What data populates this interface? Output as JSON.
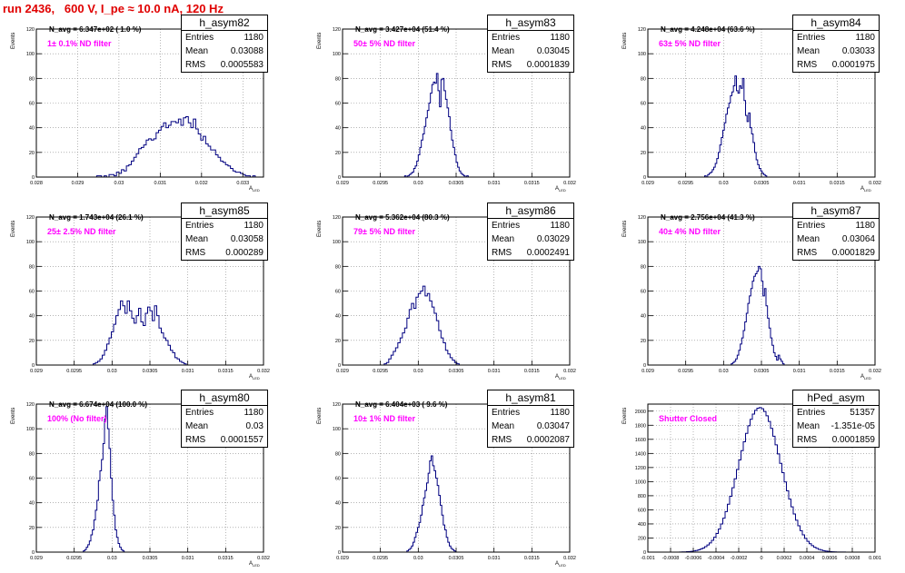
{
  "title": "run 2436,   600 V, I_pe ≈ 10.0 nA, 120 Hz",
  "chart_data": [
    {
      "type": "bar",
      "hist_name": "h_asym82",
      "navg_text": "N_avg = 6.347e+02 ( 1.0 %)",
      "filter_text": "1± 0.1% ND filter",
      "stats": {
        "entries": "1180",
        "mean": "0.03088",
        "rms": "0.0005583"
      },
      "xlabel": "A",
      "xlabel_sub": "LED",
      "ylabel": "Events",
      "xlim": [
        0.028,
        0.0335
      ],
      "ylim": [
        0,
        120
      ],
      "xticks": [
        "0.028",
        "0.029",
        "0.03",
        "0.031",
        "0.032",
        "0.033"
      ],
      "xtick_values": [
        0.028,
        0.029,
        0.03,
        0.031,
        0.032,
        0.033
      ],
      "yticks": [
        0,
        20,
        40,
        60,
        80,
        100,
        120
      ],
      "bins": {
        "x0": 0.0294,
        "width": 6e-05,
        "values": [
          0,
          1,
          1,
          0,
          1,
          0,
          2,
          2,
          1,
          4,
          3,
          6,
          5,
          9,
          10,
          13,
          16,
          19,
          23,
          24,
          26,
          30,
          31,
          30,
          31,
          36,
          38,
          41,
          44,
          40,
          42,
          45,
          45,
          44,
          47,
          42,
          48,
          49,
          44,
          40,
          47,
          39,
          35,
          30,
          33,
          27,
          25,
          22,
          22,
          18,
          16,
          13,
          12,
          10,
          9,
          7,
          5,
          4,
          4,
          3,
          2,
          1,
          1,
          0,
          1
        ]
      }
    },
    {
      "type": "bar",
      "hist_name": "h_asym83",
      "navg_text": "N_avg = 3.427e+04 (51.4 %)",
      "filter_text": "50± 5% ND filter",
      "stats": {
        "entries": "1180",
        "mean": "0.03045",
        "rms": "0.0001839"
      },
      "xlabel": "A",
      "xlabel_sub": "LED",
      "ylabel": "Events",
      "xlim": [
        0.029,
        0.032
      ],
      "ylim": [
        0,
        120
      ],
      "xticks": [
        "0.029",
        "0.0295",
        "0.03",
        "0.0305",
        "0.031",
        "0.0315",
        "0.032"
      ],
      "xtick_values": [
        0.029,
        0.0295,
        0.03,
        0.0305,
        0.031,
        0.0315,
        0.032
      ],
      "yticks": [
        0,
        20,
        40,
        60,
        80,
        100,
        120
      ],
      "bins": {
        "x0": 0.0298,
        "width": 2e-05,
        "values": [
          0,
          1,
          0,
          1,
          2,
          3,
          4,
          7,
          9,
          13,
          18,
          24,
          30,
          35,
          41,
          48,
          54,
          60,
          68,
          75,
          77,
          76,
          84,
          70,
          57,
          79,
          80,
          70,
          63,
          56,
          49,
          38,
          30,
          24,
          18,
          12,
          8,
          5,
          3,
          2,
          1,
          0,
          1
        ]
      }
    },
    {
      "type": "bar",
      "hist_name": "h_asym84",
      "navg_text": "N_avg = 4.248e+04 (63.6 %)",
      "filter_text": "63± 5% ND filter",
      "stats": {
        "entries": "1180",
        "mean": "0.03033",
        "rms": "0.0001975"
      },
      "xlabel": "A",
      "xlabel_sub": "LED",
      "ylabel": "Events",
      "xlim": [
        0.029,
        0.032
      ],
      "ylim": [
        0,
        120
      ],
      "xticks": [
        "0.029",
        "0.0295",
        "0.03",
        "0.0305",
        "0.031",
        "0.0315",
        "0.032"
      ],
      "xtick_values": [
        0.029,
        0.0295,
        0.03,
        0.0305,
        0.031,
        0.0315,
        0.032
      ],
      "yticks": [
        0,
        20,
        40,
        60,
        80,
        100,
        120
      ],
      "bins": {
        "x0": 0.02975,
        "width": 2e-05,
        "values": [
          1,
          0,
          2,
          3,
          4,
          6,
          8,
          11,
          15,
          20,
          26,
          32,
          38,
          44,
          51,
          56,
          60,
          66,
          69,
          74,
          82,
          70,
          68,
          74,
          72,
          80,
          62,
          50,
          45,
          52,
          40,
          35,
          28,
          20,
          14,
          10,
          7,
          5,
          3,
          2,
          1
        ]
      }
    },
    {
      "type": "bar",
      "hist_name": "h_asym85",
      "navg_text": "N_avg = 1.743e+04 (26.1 %)",
      "filter_text": "25± 2.5% ND filter",
      "stats": {
        "entries": "1180",
        "mean": "0.03058",
        "rms": "0.000289"
      },
      "xlabel": "A",
      "xlabel_sub": "LED",
      "ylabel": "Events",
      "xlim": [
        0.029,
        0.032
      ],
      "ylim": [
        0,
        120
      ],
      "xticks": [
        "0.029",
        "0.0295",
        "0.03",
        "0.0305",
        "0.031",
        "0.0315",
        "0.032"
      ],
      "xtick_values": [
        0.029,
        0.0295,
        0.03,
        0.0305,
        0.031,
        0.0315,
        0.032
      ],
      "yticks": [
        0,
        20,
        40,
        60,
        80,
        100,
        120
      ],
      "bins": {
        "x0": 0.02975,
        "width": 3e-05,
        "values": [
          1,
          2,
          3,
          5,
          8,
          12,
          17,
          22,
          27,
          33,
          40,
          45,
          52,
          48,
          42,
          52,
          44,
          38,
          34,
          40,
          46,
          35,
          32,
          42,
          47,
          44,
          36,
          48,
          40,
          30,
          26,
          22,
          20,
          16,
          12,
          10,
          6,
          5,
          3,
          2,
          1
        ]
      }
    },
    {
      "type": "bar",
      "hist_name": "h_asym86",
      "navg_text": "N_avg = 5.362e+04 (80.3 %)",
      "filter_text": "79± 5% ND filter",
      "stats": {
        "entries": "1180",
        "mean": "0.03029",
        "rms": "0.0002491"
      },
      "xlabel": "A",
      "xlabel_sub": "LED",
      "ylabel": "Events",
      "xlim": [
        0.029,
        0.032
      ],
      "ylim": [
        0,
        120
      ],
      "xticks": [
        "0.029",
        "0.0295",
        "0.03",
        "0.0305",
        "0.031",
        "0.0315",
        "0.032"
      ],
      "xtick_values": [
        0.029,
        0.0295,
        0.03,
        0.0305,
        0.031,
        0.0315,
        0.032
      ],
      "yticks": [
        0,
        20,
        40,
        60,
        80,
        100,
        120
      ],
      "bins": {
        "x0": 0.02955,
        "width": 3e-05,
        "values": [
          1,
          2,
          5,
          8,
          11,
          14,
          18,
          22,
          26,
          30,
          38,
          45,
          50,
          46,
          55,
          58,
          60,
          64,
          56,
          58,
          52,
          47,
          42,
          36,
          28,
          22,
          18,
          12,
          9,
          6,
          4,
          2,
          1
        ]
      }
    },
    {
      "type": "bar",
      "hist_name": "h_asym87",
      "navg_text": "N_avg = 2.756e+04 (41.3 %)",
      "filter_text": "40± 4% ND filter",
      "stats": {
        "entries": "1180",
        "mean": "0.03064",
        "rms": "0.0001829"
      },
      "xlabel": "A",
      "xlabel_sub": "LED",
      "ylabel": "Events",
      "xlim": [
        0.029,
        0.032
      ],
      "ylim": [
        0,
        120
      ],
      "xticks": [
        "0.029",
        "0.0295",
        "0.03",
        "0.0305",
        "0.031",
        "0.0315",
        "0.032"
      ],
      "xtick_values": [
        0.029,
        0.0295,
        0.03,
        0.0305,
        0.031,
        0.0315,
        0.032
      ],
      "yticks": [
        0,
        20,
        40,
        60,
        80,
        100,
        120
      ],
      "bins": {
        "x0": 0.0301,
        "width": 2e-05,
        "values": [
          1,
          2,
          3,
          5,
          8,
          12,
          17,
          22,
          28,
          35,
          42,
          50,
          56,
          62,
          68,
          72,
          74,
          76,
          80,
          78,
          68,
          56,
          62,
          48,
          38,
          30,
          22,
          16,
          10,
          7,
          4,
          8,
          5,
          3,
          1
        ]
      }
    },
    {
      "type": "bar",
      "hist_name": "h_asym80",
      "navg_text": "N_avg = 6.674e+04 (100.0 %)",
      "filter_text": "100% (No filter)",
      "stats": {
        "entries": "1180",
        "mean": "0.03",
        "rms": "0.0001557"
      },
      "xlabel": "A",
      "xlabel_sub": "LED",
      "ylabel": "Events",
      "xlim": [
        0.029,
        0.032
      ],
      "ylim": [
        0,
        120
      ],
      "xticks": [
        "0.029",
        "0.0295",
        "0.03",
        "0.0305",
        "0.031",
        "0.0315",
        "0.032"
      ],
      "xtick_values": [
        0.029,
        0.0295,
        0.03,
        0.0305,
        0.031,
        0.0315,
        0.032
      ],
      "yticks": [
        0,
        20,
        40,
        60,
        80,
        100,
        120
      ],
      "bins": {
        "x0": 0.02962,
        "width": 2e-05,
        "values": [
          1,
          2,
          4,
          6,
          9,
          14,
          18,
          26,
          34,
          42,
          58,
          66,
          75,
          88,
          108,
          118,
          100,
          84,
          60,
          42,
          30,
          18,
          12,
          7,
          4,
          2,
          1
        ]
      }
    },
    {
      "type": "bar",
      "hist_name": "h_asym81",
      "navg_text": "N_avg = 6.404e+03 ( 9.6 %)",
      "filter_text": "10± 1% ND filter",
      "stats": {
        "entries": "1180",
        "mean": "0.03047",
        "rms": "0.0002087"
      },
      "xlabel": "A",
      "xlabel_sub": "LED",
      "ylabel": "Events",
      "xlim": [
        0.029,
        0.032
      ],
      "ylim": [
        0,
        120
      ],
      "xticks": [
        "0.029",
        "0.0295",
        "0.03",
        "0.0305",
        "0.031",
        "0.0315",
        "0.032"
      ],
      "xtick_values": [
        0.029,
        0.0295,
        0.03,
        0.0305,
        0.031,
        0.0315,
        0.032
      ],
      "yticks": [
        0,
        20,
        40,
        60,
        80,
        100,
        120
      ],
      "bins": {
        "x0": 0.02985,
        "width": 2e-05,
        "values": [
          1,
          2,
          3,
          5,
          8,
          12,
          16,
          20,
          24,
          30,
          38,
          44,
          50,
          56,
          64,
          74,
          78,
          70,
          66,
          60,
          54,
          46,
          38,
          30,
          22,
          18,
          12,
          8,
          5,
          3,
          2,
          1
        ]
      }
    },
    {
      "type": "bar",
      "hist_name": "hPed_asym",
      "navg_text": "",
      "filter_text": "Shutter Closed",
      "stats": {
        "entries": "51357",
        "mean": "-1.351e-05",
        "rms": "0.0001859"
      },
      "xlabel": "",
      "xlabel_sub": "",
      "ylabel": "Events",
      "xlim": [
        -0.001,
        0.001
      ],
      "ylim": [
        0,
        2100
      ],
      "xticks": [
        "-0.001",
        "-0.0008",
        "-0.0006",
        "-0.0004",
        "-0.0002",
        "0",
        "0.0002",
        "0.0004",
        "0.0006",
        "0.0008",
        "0.001"
      ],
      "xtick_values": [
        -0.001,
        -0.0008,
        -0.0006,
        -0.0004,
        -0.0002,
        0,
        0.0002,
        0.0004,
        0.0006,
        0.0008,
        0.001
      ],
      "yticks": [
        0,
        200,
        400,
        600,
        800,
        1000,
        1200,
        1400,
        1600,
        1800,
        2000
      ],
      "gauss": {
        "mean": -1.35e-05,
        "sigma": 0.000186,
        "peak": 2050,
        "x0": -0.00072,
        "x1": 0.00072,
        "width": 2e-05
      }
    }
  ]
}
